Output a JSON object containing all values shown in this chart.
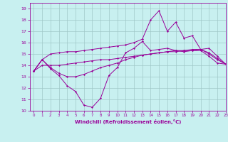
{
  "xlabel": "Windchill (Refroidissement éolien,°C)",
  "background_color": "#c8f0f0",
  "grid_color": "#a0c8c8",
  "line_color": "#990099",
  "xlim": [
    -0.5,
    23
  ],
  "ylim": [
    10,
    19.5
  ],
  "yticks": [
    10,
    11,
    12,
    13,
    14,
    15,
    16,
    17,
    18,
    19
  ],
  "xticks": [
    0,
    1,
    2,
    3,
    4,
    5,
    6,
    7,
    8,
    9,
    10,
    11,
    12,
    13,
    14,
    15,
    16,
    17,
    18,
    19,
    20,
    21,
    22,
    23
  ],
  "series": [
    [
      13.5,
      14.5,
      13.7,
      13.1,
      12.2,
      11.7,
      10.5,
      10.3,
      11.1,
      13.1,
      13.8,
      15.1,
      15.5,
      16.1,
      15.3,
      15.4,
      15.5,
      15.3,
      15.2,
      15.3,
      15.3,
      14.8,
      14.2,
      14.1
    ],
    [
      13.5,
      14.5,
      13.8,
      13.3,
      13.0,
      13.0,
      13.2,
      13.5,
      13.8,
      14.0,
      14.2,
      14.5,
      14.7,
      14.9,
      15.0,
      15.1,
      15.2,
      15.3,
      15.3,
      15.4,
      15.4,
      15.0,
      14.5,
      14.1
    ],
    [
      13.5,
      14.0,
      14.0,
      14.0,
      14.1,
      14.2,
      14.3,
      14.4,
      14.5,
      14.5,
      14.6,
      14.7,
      14.8,
      14.9,
      15.0,
      15.1,
      15.2,
      15.2,
      15.3,
      15.3,
      15.4,
      15.1,
      14.6,
      14.1
    ],
    [
      13.5,
      14.5,
      15.0,
      15.1,
      15.2,
      15.2,
      15.3,
      15.4,
      15.5,
      15.6,
      15.7,
      15.8,
      16.0,
      16.3,
      18.0,
      18.8,
      17.0,
      17.8,
      16.4,
      16.6,
      15.4,
      15.5,
      14.8,
      14.1
    ]
  ]
}
